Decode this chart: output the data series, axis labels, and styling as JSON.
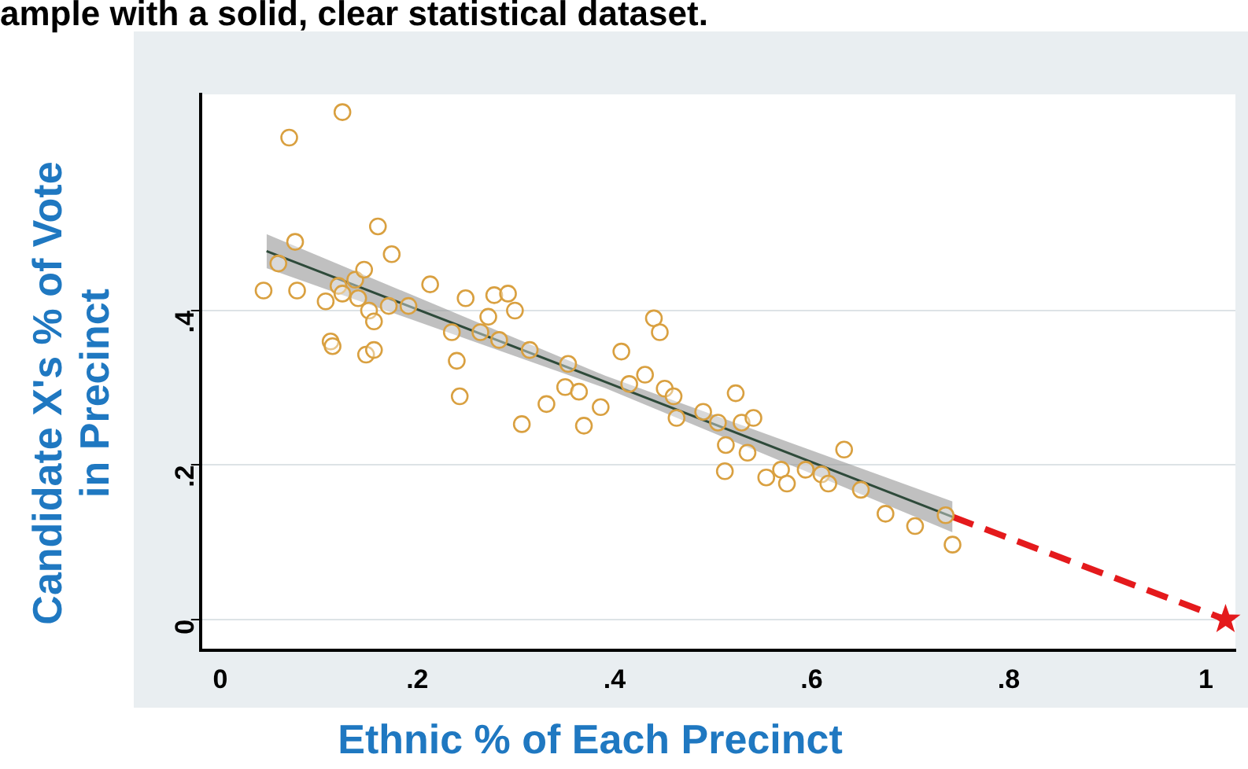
{
  "chart_data": {
    "type": "scatter",
    "title": "ample with a solid, clear statistical dataset.",
    "xlabel": "Ethnic % of Each Precinct",
    "ylabel": "Candidate X's % of Vote in Precinct",
    "xlim": [
      -0.02,
      1.03
    ],
    "ylim": [
      -0.04,
      0.68
    ],
    "xticks": [
      0,
      {
        "value": 0.2,
        "label": ".2"
      },
      {
        "value": 0.4,
        "label": ".4"
      },
      {
        "value": 0.6,
        "label": ".6"
      },
      {
        "value": 0.8,
        "label": ".8"
      },
      1
    ],
    "yticks": [
      0,
      {
        "value": 0.2,
        "label": ".2"
      },
      {
        "value": 0.4,
        "label": ".4"
      }
    ],
    "grid": "y",
    "legend": false,
    "series": [
      {
        "color": "#d9a040",
        "marker": "circle",
        "x": [
          0.044,
          0.059,
          0.076,
          0.07,
          0.124,
          0.078,
          0.107,
          0.12,
          0.124,
          0.137,
          0.146,
          0.14,
          0.151,
          0.156,
          0.16,
          0.174,
          0.171,
          0.191,
          0.213,
          0.112,
          0.114,
          0.148,
          0.156,
          0.235,
          0.24,
          0.243,
          0.249,
          0.272,
          0.278,
          0.292,
          0.299,
          0.264,
          0.283,
          0.306,
          0.331,
          0.35,
          0.353,
          0.314,
          0.364,
          0.369,
          0.386,
          0.407,
          0.415,
          0.431,
          0.44,
          0.446,
          0.451,
          0.46,
          0.463,
          0.49,
          0.505,
          0.513,
          0.512,
          0.523,
          0.529,
          0.541,
          0.535,
          0.554,
          0.569,
          0.575,
          0.594,
          0.61,
          0.617,
          0.633,
          0.65,
          0.675,
          0.705,
          0.736,
          0.743
        ],
        "values": [
          0.426,
          0.461,
          0.489,
          0.624,
          0.657,
          0.426,
          0.412,
          0.432,
          0.422,
          0.44,
          0.453,
          0.416,
          0.4,
          0.386,
          0.509,
          0.473,
          0.406,
          0.406,
          0.434,
          0.36,
          0.354,
          0.343,
          0.349,
          0.372,
          0.335,
          0.289,
          0.416,
          0.392,
          0.42,
          0.422,
          0.4,
          0.372,
          0.362,
          0.253,
          0.279,
          0.301,
          0.331,
          0.349,
          0.295,
          0.251,
          0.275,
          0.347,
          0.305,
          0.317,
          0.39,
          0.372,
          0.299,
          0.289,
          0.261,
          0.269,
          0.255,
          0.226,
          0.192,
          0.293,
          0.255,
          0.261,
          0.216,
          0.184,
          0.194,
          0.176,
          0.194,
          0.188,
          0.176,
          0.22,
          0.168,
          0.137,
          0.121,
          0.135,
          0.097
        ]
      },
      {
        "type": "line",
        "color": "#2e4a3a",
        "marker": "none",
        "line_style": "solid",
        "x": [
          0.047,
          0.39,
          0.743
        ],
        "values": [
          0.477,
          0.308,
          0.133
        ],
        "lower": [
          0.455,
          0.3,
          0.113
        ],
        "upper": [
          0.499,
          0.316,
          0.153
        ]
      },
      {
        "type": "line",
        "color": "#e41a1c",
        "marker": "none",
        "line_style": "dashed",
        "x": [
          0.743,
          1.02
        ],
        "values": [
          0.133,
          0
        ]
      },
      {
        "type": "scatter",
        "color": "#e41a1c",
        "marker": "star",
        "x": [
          1.02
        ],
        "values": [
          0
        ]
      }
    ]
  }
}
